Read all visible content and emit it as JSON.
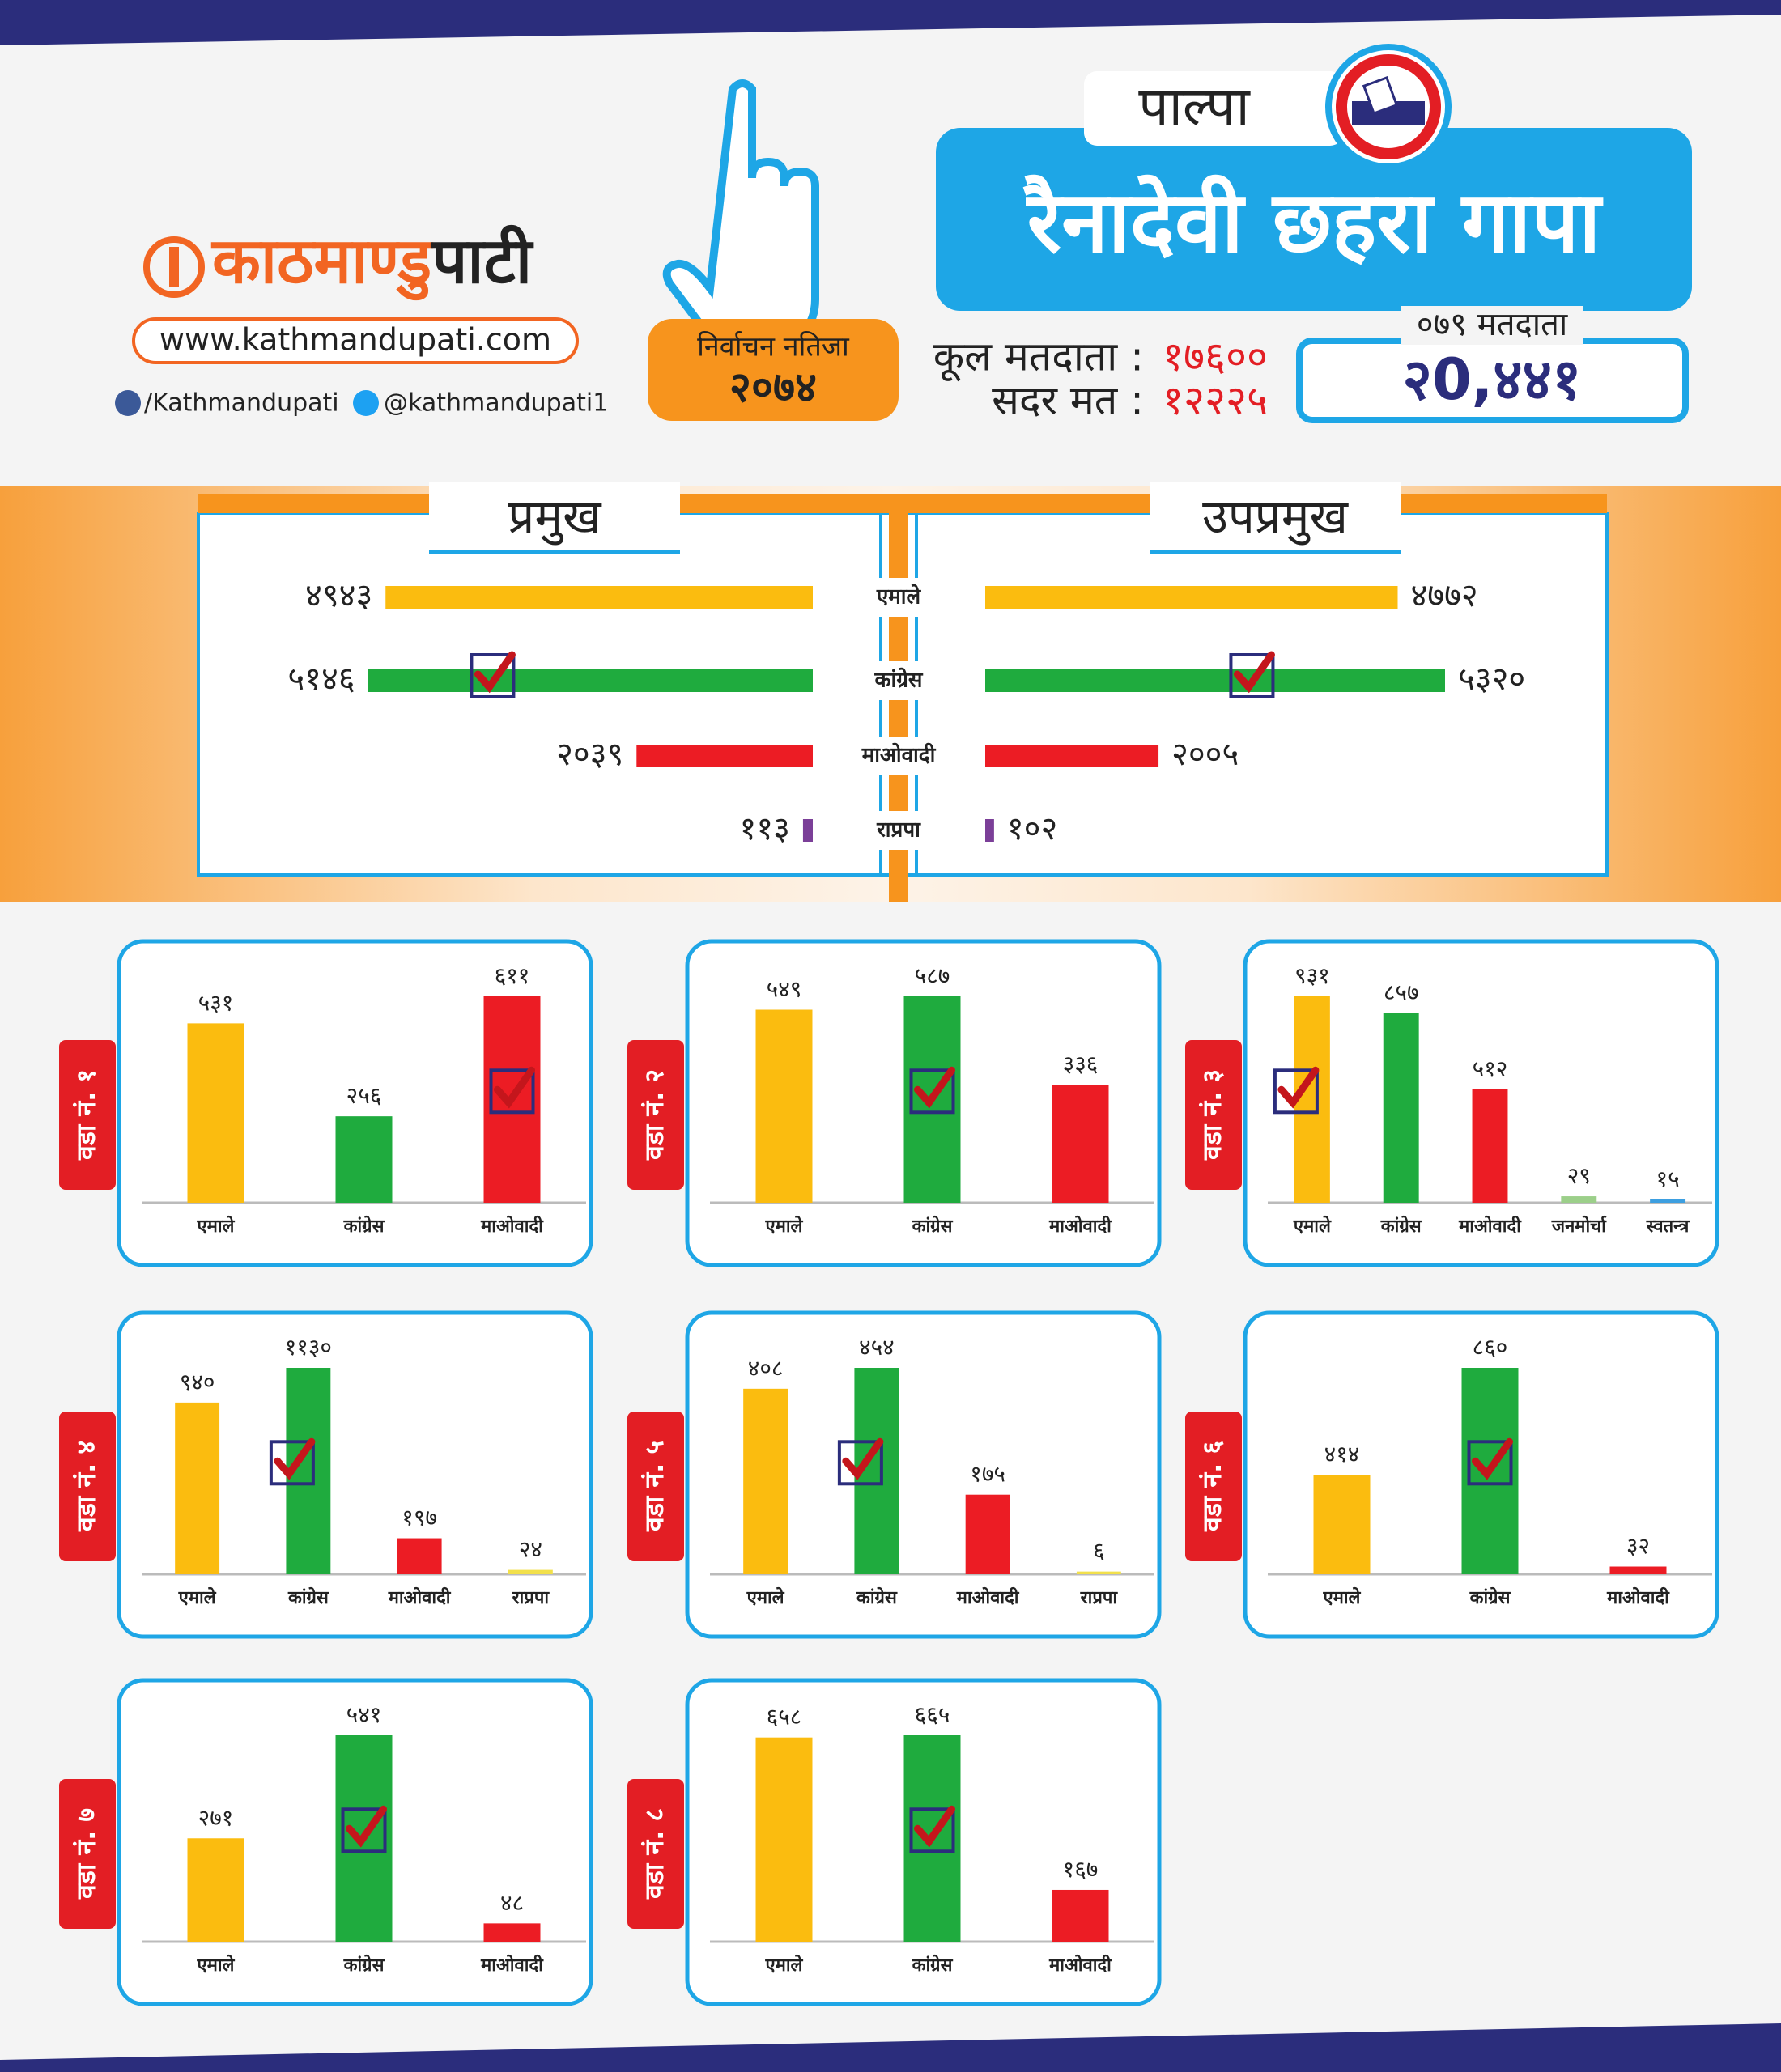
{
  "header": {
    "brand_part1": "काठमाण्डु",
    "brand_part2": "पाटी",
    "website": "www.kathmandupati.com",
    "facebook": "/Kathmandupati",
    "twitter": "@kathmandupati1",
    "badge_line1": "निर्वाचन नतिजा",
    "badge_line2": "२०७४",
    "district": "पाल्पा",
    "municipality": "रैनादेवी छहरा गापा",
    "total_voters_label": "कूल मतदाता :",
    "total_voters": "१७६००",
    "valid_votes_label": "सदर मत :",
    "valid_votes": "१२२२५",
    "voters_079_label": "०७९ मतदाता",
    "voters_079": "२0,४४१"
  },
  "chart_data": [
    {
      "type": "barh",
      "direction": "left",
      "title": "प्रमुख",
      "categories": [
        "एमाले",
        "कांग्रेस",
        "माओवादी",
        "राप्रपा"
      ],
      "values": [
        4943,
        5146,
        2039,
        113
      ],
      "value_labels": [
        "४९४३",
        "५१४६",
        "२०३९",
        "११३"
      ],
      "colors": [
        "#fbbc0f",
        "#1fab3e",
        "#ec1c24",
        "#7b3f98"
      ],
      "winner": 1
    },
    {
      "type": "barh",
      "direction": "right",
      "title": "उपप्रमुख",
      "values": [
        4772,
        5320,
        2005,
        102
      ],
      "value_labels": [
        "४७७२",
        "५३२०",
        "२००५",
        "१०२"
      ],
      "colors": [
        "#fbbc0f",
        "#1fab3e",
        "#ec1c24",
        "#7b3f98"
      ],
      "winner": 1
    },
    {
      "type": "bar",
      "title": "वडा नं. १",
      "categories": [
        "एमाले",
        "कांग्रेस",
        "माओवादी"
      ],
      "values": [
        531,
        256,
        611
      ],
      "value_labels": [
        "५३१",
        "२५६",
        "६११"
      ],
      "colors": [
        "#fbbc0f",
        "#1fab3e",
        "#ec1c24"
      ],
      "winner": 2
    },
    {
      "type": "bar",
      "title": "वडा नं. २",
      "categories": [
        "एमाले",
        "कांग्रेस",
        "माओवादी"
      ],
      "values": [
        549,
        587,
        336
      ],
      "value_labels": [
        "५४९",
        "५८७",
        "३३६"
      ],
      "colors": [
        "#fbbc0f",
        "#1fab3e",
        "#ec1c24"
      ],
      "winner": 1
    },
    {
      "type": "bar",
      "title": "वडा नं. ३",
      "categories": [
        "एमाले",
        "कांग्रेस",
        "माओवादी",
        "जनमोर्चा",
        "स्वतन्त्र"
      ],
      "values": [
        931,
        857,
        512,
        29,
        15
      ],
      "value_labels": [
        "९३१",
        "८५७",
        "५१२",
        "२९",
        "१५"
      ],
      "colors": [
        "#fbbc0f",
        "#1fab3e",
        "#ec1c24",
        "#9ccf8a",
        "#3d9fe0"
      ],
      "winner": 0
    },
    {
      "type": "bar",
      "title": "वडा नं. ४",
      "categories": [
        "एमाले",
        "कांग्रेस",
        "माओवादी",
        "राप्रपा"
      ],
      "values": [
        940,
        1130,
        197,
        24
      ],
      "value_labels": [
        "९४०",
        "११३०",
        "१९७",
        "२४"
      ],
      "colors": [
        "#fbbc0f",
        "#1fab3e",
        "#ec1c24",
        "#f2e04b"
      ],
      "winner": 1
    },
    {
      "type": "bar",
      "title": "वडा नं. ५",
      "categories": [
        "एमाले",
        "कांग्रेस",
        "माओवादी",
        "राप्रपा"
      ],
      "values": [
        408,
        454,
        175,
        6
      ],
      "value_labels": [
        "४०८",
        "४५४",
        "१७५",
        "६"
      ],
      "colors": [
        "#fbbc0f",
        "#1fab3e",
        "#ec1c24",
        "#f2e04b"
      ],
      "winner": 1
    },
    {
      "type": "bar",
      "title": "वडा नं. ६",
      "categories": [
        "एमाले",
        "कांग्रेस",
        "माओवादी"
      ],
      "values": [
        414,
        860,
        32
      ],
      "value_labels": [
        "४१४",
        "८६०",
        "३२"
      ],
      "colors": [
        "#fbbc0f",
        "#1fab3e",
        "#ec1c24"
      ],
      "winner": 1
    },
    {
      "type": "bar",
      "title": "वडा नं. ७",
      "categories": [
        "एमाले",
        "कांग्रेस",
        "माओवादी"
      ],
      "values": [
        271,
        541,
        48
      ],
      "value_labels": [
        "२७१",
        "५४१",
        "४८"
      ],
      "colors": [
        "#fbbc0f",
        "#1fab3e",
        "#ec1c24"
      ],
      "winner": 1
    },
    {
      "type": "bar",
      "title": "वडा नं. ८",
      "categories": [
        "एमाले",
        "कांग्रेस",
        "माओवादी"
      ],
      "values": [
        658,
        665,
        167
      ],
      "value_labels": [
        "६५८",
        "६६५",
        "१६७"
      ],
      "colors": [
        "#fbbc0f",
        "#1fab3e",
        "#ec1c24"
      ],
      "winner": 1
    }
  ]
}
